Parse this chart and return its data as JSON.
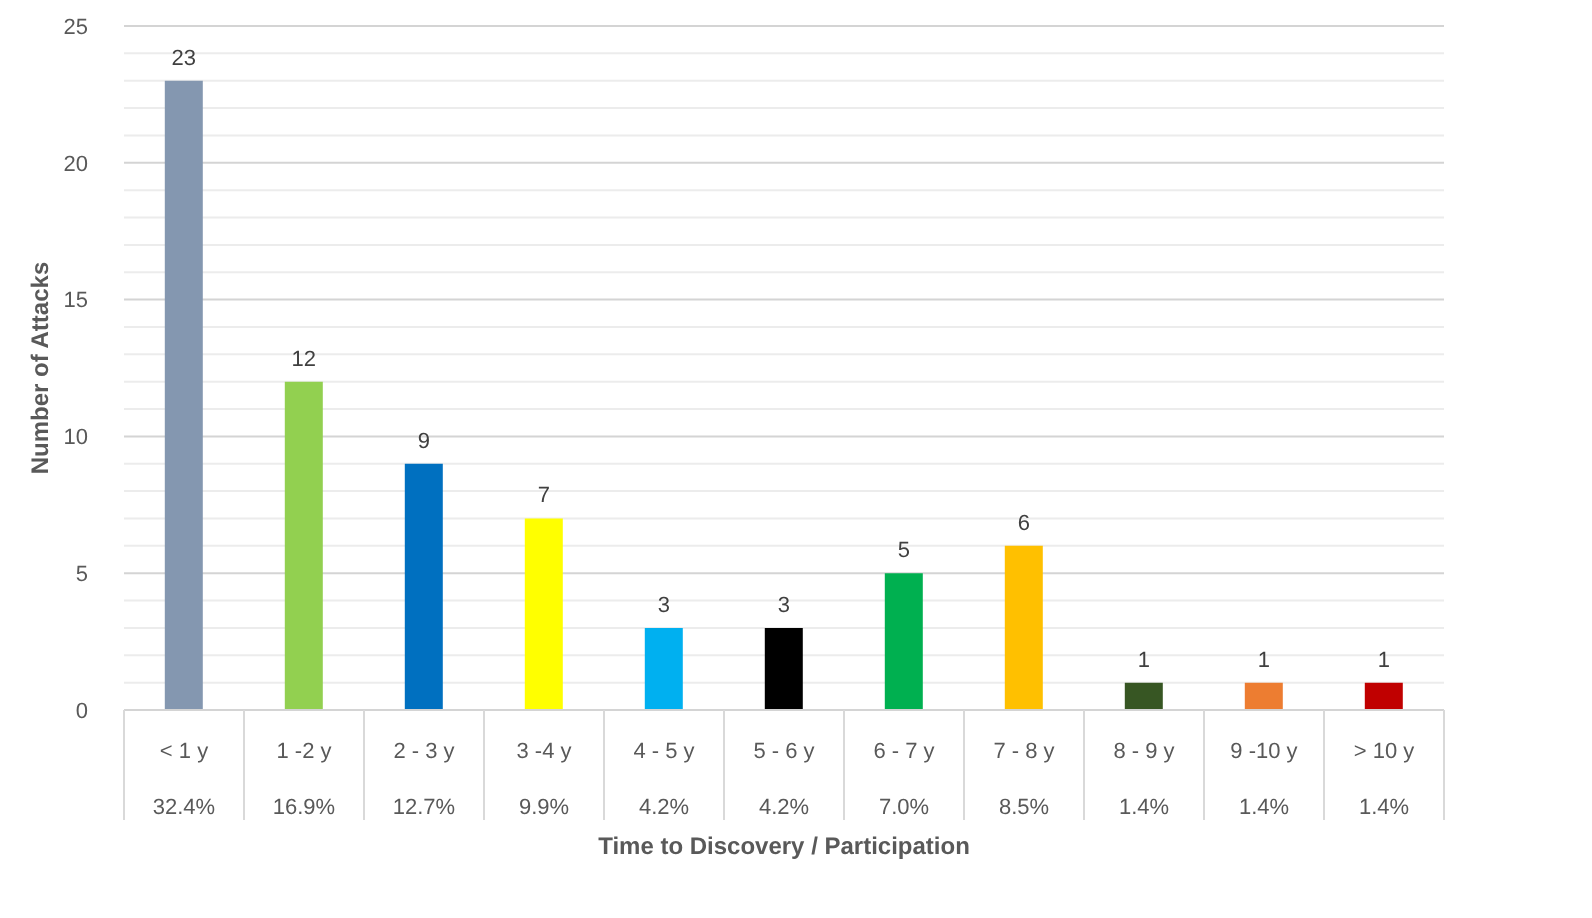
{
  "chart_data": {
    "type": "bar",
    "xlabel": "Time to Discovery / Participation",
    "ylabel": "Number of Attacks",
    "categories": [
      "< 1 y",
      "1 -2 y",
      "2 - 3 y",
      "3 -4 y",
      "4 - 5 y",
      "5 - 6 y",
      "6 - 7 y",
      "7 - 8 y",
      "8 - 9 y",
      "9 -10 y",
      "> 10 y"
    ],
    "values": [
      23,
      12,
      9,
      7,
      3,
      3,
      5,
      6,
      1,
      1,
      1
    ],
    "colors": [
      "#8497b0",
      "#92d050",
      "#0070c0",
      "#ffff00",
      "#00b0f0",
      "#000000",
      "#00b050",
      "#ffc000",
      "#375623",
      "#ed7d31",
      "#c00000"
    ],
    "ylim": [
      0,
      25
    ],
    "yticks": [
      0,
      {
        "value": 1,
        "label": null
      },
      {
        "value": 2,
        "label": null
      },
      {
        "value": 3,
        "label": null
      },
      {
        "value": 4,
        "label": null
      },
      5,
      {
        "value": 6,
        "label": null
      },
      {
        "value": 7,
        "label": null
      },
      {
        "value": 8,
        "label": null
      },
      {
        "value": 9,
        "label": null
      },
      10,
      {
        "value": 11,
        "label": null
      },
      {
        "value": 12,
        "label": null
      },
      {
        "value": 13,
        "label": null
      },
      {
        "value": 14,
        "label": null
      },
      15,
      {
        "value": 16,
        "label": null
      },
      {
        "value": 17,
        "label": null
      },
      {
        "value": 18,
        "label": null
      },
      {
        "value": 19,
        "label": null
      },
      20,
      {
        "value": 21,
        "label": null
      },
      {
        "value": 22,
        "label": null
      },
      {
        "value": 23,
        "label": null
      },
      {
        "value": 24,
        "label": null
      },
      25
    ],
    "grid": "y",
    "data_labels": true,
    "annotations": [
      "32.4%",
      "16.9%",
      "12.7%",
      "9.9%",
      "4.2%",
      "4.2%",
      "7.0%",
      "8.5%",
      "1.4%",
      "1.4%",
      "1.4%"
    ]
  }
}
